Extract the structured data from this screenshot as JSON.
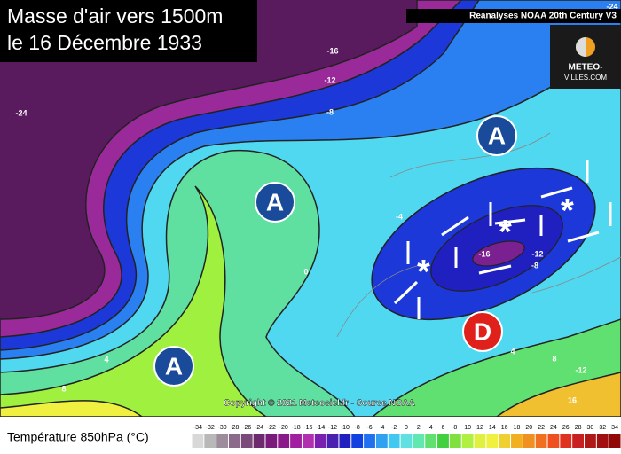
{
  "header": {
    "title_lines": [
      "Masse d'air vers 1500m",
      "le 16 Décembre 1933"
    ],
    "source": "Reanalyses NOAA 20th Century V3"
  },
  "logo": {
    "lines": [
      "METEO-",
      "VILLES.COM"
    ]
  },
  "map": {
    "pressure_centers": [
      "A",
      "A",
      "A",
      "D"
    ],
    "contour_labels": [
      -24,
      -16,
      -12,
      -8,
      -4,
      0,
      4,
      8,
      -16,
      -8,
      -12,
      4,
      8,
      -12,
      16,
      -24
    ]
  },
  "copyright": "Copyright © 2021 Meteociel.fr - Source NOAA",
  "legend": {
    "title": "Température 850hPa (°C)",
    "scale": {
      "values": [
        -34,
        -32,
        -30,
        -28,
        -26,
        -24,
        -22,
        -20,
        -18,
        -16,
        -14,
        -12,
        -10,
        -8,
        -6,
        -4,
        -2,
        0,
        2,
        4,
        6,
        8,
        10,
        12,
        14,
        16,
        18,
        20,
        22,
        24,
        26,
        28,
        30,
        32,
        34
      ],
      "colors": [
        "#d8d8d8",
        "#b8b8b8",
        "#9c8c9c",
        "#8c6a8c",
        "#7a4a7a",
        "#6e2a6e",
        "#7a1a7a",
        "#8a1a8a",
        "#a020a0",
        "#b030b0",
        "#7a20b0",
        "#4a20b0",
        "#2020c0",
        "#1040e0",
        "#2070f0",
        "#30a0f0",
        "#40c8f0",
        "#60e0e0",
        "#60e8b0",
        "#60e070",
        "#40d040",
        "#80e040",
        "#b0f040",
        "#e0f040",
        "#f0f040",
        "#f0d030",
        "#f0b020",
        "#f09020",
        "#f07020",
        "#f05020",
        "#e03020",
        "#c82020",
        "#b01818",
        "#a01010",
        "#900808"
      ]
    }
  }
}
